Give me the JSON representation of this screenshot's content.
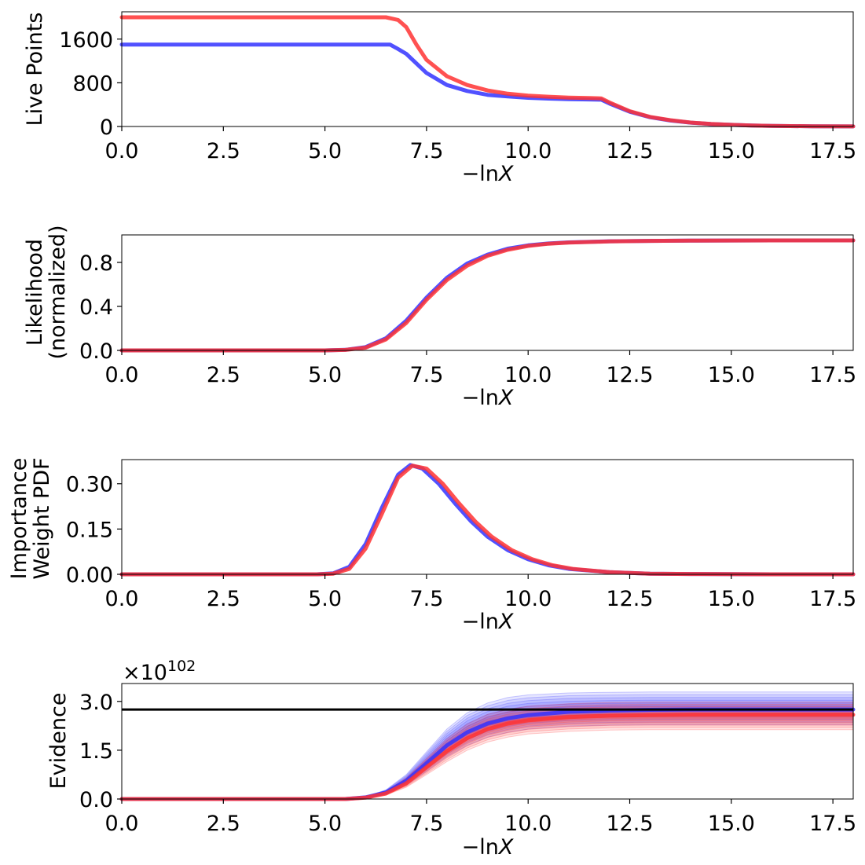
{
  "chart_data": [
    {
      "type": "line",
      "xlabel_main": "−ln",
      "xlabel_var": "X",
      "ylabel": [
        "Live Points"
      ],
      "xlim": [
        0,
        18
      ],
      "ylim": [
        0,
        2100
      ],
      "xticks": [
        0.0,
        2.5,
        5.0,
        7.5,
        10.0,
        12.5,
        15.0,
        17.5
      ],
      "xtick_labels": [
        "0.0",
        "2.5",
        "5.0",
        "7.5",
        "10.0",
        "12.5",
        "15.0",
        "17.5"
      ],
      "yticks": [
        0,
        800,
        1600
      ],
      "ytick_labels": [
        "0",
        "800",
        "1600"
      ],
      "series": [
        {
          "color": "#3333ff",
          "x": [
            0,
            6.6,
            6.75,
            7.0,
            7.5,
            8.0,
            8.5,
            9.0,
            9.5,
            10.0,
            10.5,
            11.0,
            11.5,
            11.8,
            12.0,
            12.5,
            13.0,
            13.5,
            14.0,
            14.5,
            15.0,
            15.5,
            16.0,
            17.0,
            18.0
          ],
          "y": [
            1500,
            1500,
            1440,
            1330,
            980,
            760,
            650,
            580,
            550,
            525,
            510,
            500,
            495,
            490,
            420,
            270,
            170,
            110,
            70,
            45,
            30,
            18,
            10,
            4,
            1
          ]
        },
        {
          "color": "#ff3333",
          "x": [
            0,
            6.5,
            6.8,
            7.0,
            7.25,
            7.5,
            8.0,
            8.5,
            9.0,
            9.5,
            10.0,
            10.5,
            11.0,
            11.5,
            11.8,
            12.0,
            12.5,
            13.0,
            13.5,
            14.0,
            14.5,
            15.0,
            15.5,
            16.0,
            17.0,
            18.0
          ],
          "y": [
            2000,
            2000,
            1950,
            1820,
            1500,
            1220,
            920,
            760,
            660,
            600,
            565,
            545,
            530,
            520,
            515,
            440,
            280,
            175,
            115,
            72,
            46,
            30,
            18,
            10,
            4,
            1
          ]
        }
      ]
    },
    {
      "type": "line",
      "xlabel_main": "−ln",
      "xlabel_var": "X",
      "ylabel": [
        "Likelihood",
        "(normalized)"
      ],
      "xlim": [
        0,
        18
      ],
      "ylim": [
        0,
        1.05
      ],
      "xticks": [
        0.0,
        2.5,
        5.0,
        7.5,
        10.0,
        12.5,
        15.0,
        17.5
      ],
      "xtick_labels": [
        "0.0",
        "2.5",
        "5.0",
        "7.5",
        "10.0",
        "12.5",
        "15.0",
        "17.5"
      ],
      "yticks": [
        0.0,
        0.4,
        0.8
      ],
      "ytick_labels": [
        "0.0",
        "0.4",
        "0.8"
      ],
      "series": [
        {
          "color": "#3333ff",
          "x": [
            0,
            5.0,
            5.5,
            6.0,
            6.5,
            7.0,
            7.5,
            8.0,
            8.5,
            9.0,
            9.5,
            10.0,
            10.5,
            11.0,
            12.0,
            13.0,
            14.0,
            15.0,
            16.0,
            18.0
          ],
          "y": [
            0,
            0.0,
            0.005,
            0.03,
            0.11,
            0.27,
            0.48,
            0.66,
            0.79,
            0.87,
            0.925,
            0.955,
            0.972,
            0.982,
            0.992,
            0.996,
            0.998,
            0.999,
            1.0,
            1.0
          ]
        },
        {
          "color": "#ff3333",
          "x": [
            0,
            5.0,
            5.5,
            6.0,
            6.5,
            7.0,
            7.5,
            8.0,
            8.5,
            9.0,
            9.5,
            10.0,
            10.5,
            11.0,
            12.0,
            13.0,
            14.0,
            15.0,
            16.0,
            18.0
          ],
          "y": [
            0,
            0.0,
            0.004,
            0.025,
            0.1,
            0.25,
            0.46,
            0.64,
            0.77,
            0.86,
            0.915,
            0.95,
            0.97,
            0.98,
            0.991,
            0.996,
            0.998,
            0.999,
            1.0,
            1.0
          ]
        }
      ]
    },
    {
      "type": "line",
      "xlabel_main": "−ln",
      "xlabel_var": "X",
      "ylabel": [
        "Importance",
        "Weight PDF"
      ],
      "xlim": [
        0,
        18
      ],
      "ylim": [
        0,
        0.38
      ],
      "xticks": [
        0.0,
        2.5,
        5.0,
        7.5,
        10.0,
        12.5,
        15.0,
        17.5
      ],
      "xtick_labels": [
        "0.0",
        "2.5",
        "5.0",
        "7.5",
        "10.0",
        "12.5",
        "15.0",
        "17.5"
      ],
      "yticks": [
        0.0,
        0.15,
        0.3
      ],
      "ytick_labels": [
        "0.00",
        "0.15",
        "0.30"
      ],
      "series": [
        {
          "color": "#3333ff",
          "x": [
            0,
            4.8,
            5.2,
            5.6,
            6.0,
            6.4,
            6.8,
            7.1,
            7.4,
            7.8,
            8.2,
            8.6,
            9.0,
            9.5,
            10.0,
            10.5,
            11.0,
            12.0,
            13.0,
            14.0,
            16.0,
            18.0
          ],
          "y": [
            0,
            0.0,
            0.003,
            0.025,
            0.1,
            0.22,
            0.33,
            0.362,
            0.35,
            0.3,
            0.235,
            0.175,
            0.125,
            0.08,
            0.05,
            0.03,
            0.018,
            0.007,
            0.002,
            0.001,
            0.0,
            0.0
          ]
        },
        {
          "color": "#ff3333",
          "x": [
            0,
            4.8,
            5.2,
            5.6,
            6.0,
            6.4,
            6.8,
            7.15,
            7.5,
            7.9,
            8.3,
            8.7,
            9.1,
            9.6,
            10.1,
            10.6,
            11.1,
            12.0,
            13.0,
            14.0,
            16.0,
            18.0
          ],
          "y": [
            0,
            0.0,
            0.002,
            0.018,
            0.085,
            0.2,
            0.32,
            0.36,
            0.35,
            0.3,
            0.235,
            0.175,
            0.125,
            0.08,
            0.05,
            0.03,
            0.018,
            0.007,
            0.002,
            0.001,
            0.0,
            0.0
          ]
        }
      ]
    },
    {
      "type": "line",
      "xlabel_main": "−ln",
      "xlabel_var": "X",
      "ylabel": [
        "Evidence"
      ],
      "xlim": [
        0,
        18
      ],
      "ylim": [
        0,
        3.55
      ],
      "offset_text_base": "×10",
      "offset_text_exp": "102",
      "xticks": [
        0.0,
        2.5,
        5.0,
        7.5,
        10.0,
        12.5,
        15.0,
        17.5
      ],
      "xtick_labels": [
        "0.0",
        "2.5",
        "5.0",
        "7.5",
        "10.0",
        "12.5",
        "15.0",
        "17.5"
      ],
      "yticks": [
        0.0,
        1.5,
        3.0
      ],
      "ytick_labels": [
        "0.0",
        "1.5",
        "3.0"
      ],
      "reference_line": {
        "y": 2.75,
        "color": "#000000"
      },
      "bands": [
        {
          "color": "#3333ff",
          "x": [
            0,
            5.5,
            6.0,
            6.5,
            7.0,
            7.5,
            8.0,
            8.5,
            9.0,
            9.5,
            10.0,
            11.0,
            12.0,
            13.0,
            14.0,
            18.0
          ],
          "lower": [
            0,
            0.0,
            0.04,
            0.15,
            0.42,
            0.85,
            1.3,
            1.65,
            1.9,
            2.05,
            2.15,
            2.24,
            2.27,
            2.28,
            2.28,
            2.28
          ],
          "upper": [
            0,
            0.0,
            0.07,
            0.28,
            0.75,
            1.45,
            2.15,
            2.65,
            2.95,
            3.12,
            3.2,
            3.26,
            3.28,
            3.29,
            3.29,
            3.29
          ]
        },
        {
          "color": "#ff3333",
          "x": [
            0,
            5.5,
            6.0,
            6.5,
            7.0,
            7.5,
            8.0,
            8.5,
            9.0,
            9.5,
            10.0,
            11.0,
            12.0,
            13.0,
            14.0,
            18.0
          ],
          "lower": [
            0,
            0.0,
            0.03,
            0.12,
            0.36,
            0.75,
            1.15,
            1.5,
            1.75,
            1.9,
            2.0,
            2.08,
            2.12,
            2.13,
            2.13,
            2.13
          ],
          "upper": [
            0,
            0.0,
            0.06,
            0.24,
            0.65,
            1.25,
            1.85,
            2.3,
            2.6,
            2.75,
            2.85,
            2.93,
            2.97,
            2.98,
            2.98,
            2.98
          ]
        }
      ],
      "series": [
        {
          "color": "#3333ff",
          "x": [
            0,
            5.5,
            6.0,
            6.5,
            7.0,
            7.5,
            8.0,
            8.5,
            9.0,
            9.5,
            10.0,
            11.0,
            12.0,
            13.0,
            14.0,
            18.0
          ],
          "y": [
            0,
            0.0,
            0.05,
            0.2,
            0.56,
            1.1,
            1.65,
            2.05,
            2.32,
            2.48,
            2.58,
            2.68,
            2.72,
            2.74,
            2.75,
            2.75
          ]
        },
        {
          "color": "#ff3333",
          "x": [
            0,
            5.5,
            6.0,
            6.5,
            7.0,
            7.5,
            8.0,
            8.5,
            9.0,
            9.5,
            10.0,
            11.0,
            12.0,
            13.0,
            14.0,
            18.0
          ],
          "y": [
            0,
            0.0,
            0.04,
            0.17,
            0.48,
            0.98,
            1.47,
            1.87,
            2.15,
            2.32,
            2.42,
            2.52,
            2.56,
            2.58,
            2.59,
            2.59
          ]
        }
      ]
    }
  ]
}
